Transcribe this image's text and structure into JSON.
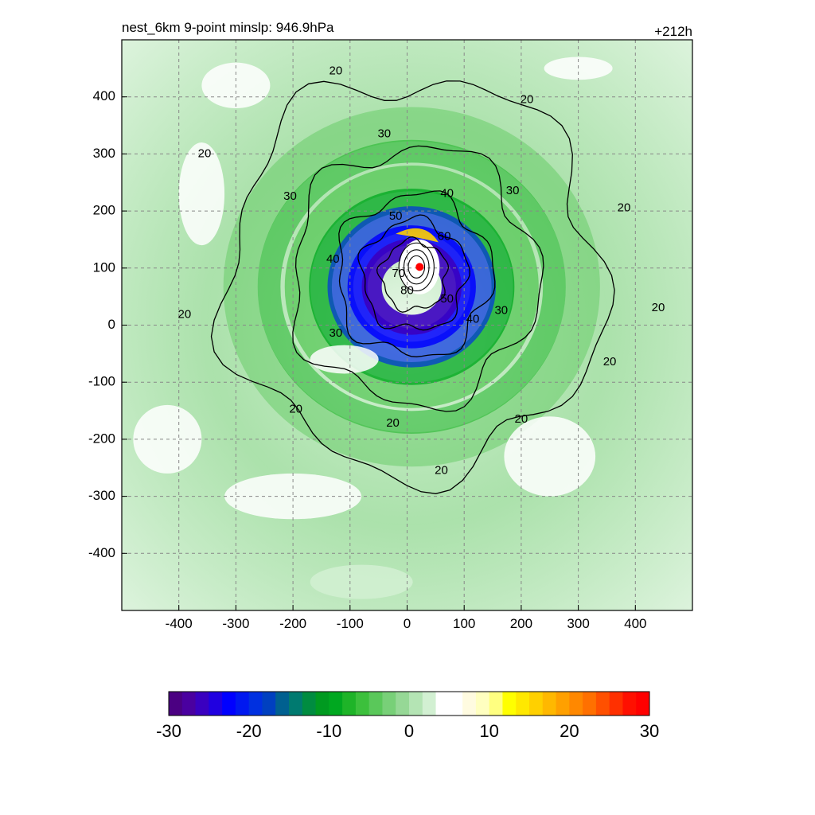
{
  "chart_data": {
    "type": "heatmap",
    "title_left": "nest_6km  9-point minslp: 946.9hPa",
    "title_right": "+212h",
    "xlabel": "",
    "ylabel": "",
    "xlim": [
      -500,
      500
    ],
    "ylim": [
      -500,
      500
    ],
    "x_ticks": [
      -400,
      -300,
      -200,
      -100,
      0,
      100,
      200,
      300,
      400
    ],
    "y_ticks": [
      400,
      300,
      200,
      100,
      0,
      -100,
      -200,
      -300,
      -400
    ],
    "grid": true,
    "storm_center": {
      "x": 22,
      "y": 102,
      "color": "#ff0000"
    },
    "wind_contours": [
      {
        "level": 20,
        "radius": 330
      },
      {
        "level": 30,
        "radius": 215
      },
      {
        "level": 40,
        "radius": 135
      },
      {
        "level": 50,
        "radius": 92
      },
      {
        "level": 60,
        "radius": 58
      }
    ],
    "contour_labels": [
      {
        "text": "20",
        "x": -125,
        "y": 445
      },
      {
        "text": "20",
        "x": 210,
        "y": 395
      },
      {
        "text": "20",
        "x": -355,
        "y": 300
      },
      {
        "text": "20",
        "x": 380,
        "y": 205
      },
      {
        "text": "20",
        "x": 440,
        "y": 30
      },
      {
        "text": "20",
        "x": -390,
        "y": 18
      },
      {
        "text": "20",
        "x": 355,
        "y": -65
      },
      {
        "text": "20",
        "x": -195,
        "y": -148
      },
      {
        "text": "20",
        "x": 200,
        "y": -165
      },
      {
        "text": "20",
        "x": -25,
        "y": -172
      },
      {
        "text": "20",
        "x": 60,
        "y": -255
      },
      {
        "text": "30",
        "x": -40,
        "y": 335
      },
      {
        "text": "30",
        "x": 185,
        "y": 235
      },
      {
        "text": "30",
        "x": -205,
        "y": 225
      },
      {
        "text": "30",
        "x": 165,
        "y": 25
      },
      {
        "text": "30",
        "x": -125,
        "y": -15
      },
      {
        "text": "40",
        "x": 70,
        "y": 230
      },
      {
        "text": "40",
        "x": -130,
        "y": 115
      },
      {
        "text": "40",
        "x": 115,
        "y": 10
      },
      {
        "text": "50",
        "x": -20,
        "y": 190
      },
      {
        "text": "50",
        "x": 70,
        "y": 45
      },
      {
        "text": "60",
        "x": 65,
        "y": 155
      },
      {
        "text": "70",
        "x": -15,
        "y": 90
      },
      {
        "text": "80",
        "x": 0,
        "y": 60
      }
    ],
    "colorbar": {
      "min": -30,
      "max": 30,
      "tick_labels": [
        "-30",
        "-20",
        "-10",
        "0",
        "10",
        "20",
        "30"
      ],
      "colors": [
        "#4b0082",
        "#4a00a0",
        "#3a00c0",
        "#2000e0",
        "#0000ff",
        "#0018f0",
        "#0030e0",
        "#0040c0",
        "#006090",
        "#007a70",
        "#008c40",
        "#009a20",
        "#00a820",
        "#1eb428",
        "#3cc03c",
        "#5ac85a",
        "#78d078",
        "#96d896",
        "#b4e4b4",
        "#d2f0d2",
        "#ffffff",
        "#ffffff",
        "#fffbe0",
        "#ffffc0",
        "#ffff80",
        "#ffff00",
        "#ffe800",
        "#ffd000",
        "#ffb800",
        "#ffa000",
        "#ff8800",
        "#ff7000",
        "#ff5000",
        "#ff3000",
        "#ff1000",
        "#ff0000"
      ]
    }
  }
}
